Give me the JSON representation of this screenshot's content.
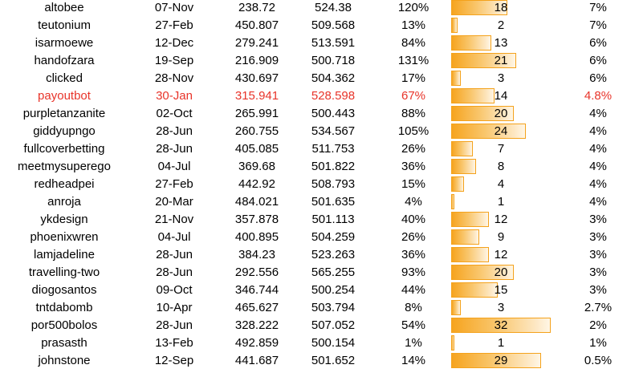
{
  "colors": {
    "highlight_text": "#e8342a",
    "bar_border": "#f4a21c",
    "bar_fill_start": "#f6a41f",
    "bar_fill_end": "#fff6e6"
  },
  "bar_scale_max": 32,
  "rows": [
    {
      "name": "altobee",
      "date": "07-Nov",
      "v1": "238.72",
      "v2": "524.38",
      "pct": "120%",
      "count": 18,
      "share": "7%",
      "highlight": false
    },
    {
      "name": "teutonium",
      "date": "27-Feb",
      "v1": "450.807",
      "v2": "509.568",
      "pct": "13%",
      "count": 2,
      "share": "7%",
      "highlight": false
    },
    {
      "name": "isarmoewe",
      "date": "12-Dec",
      "v1": "279.241",
      "v2": "513.591",
      "pct": "84%",
      "count": 13,
      "share": "6%",
      "highlight": false
    },
    {
      "name": "handofzara",
      "date": "19-Sep",
      "v1": "216.909",
      "v2": "500.718",
      "pct": "131%",
      "count": 21,
      "share": "6%",
      "highlight": false
    },
    {
      "name": "clicked",
      "date": "28-Nov",
      "v1": "430.697",
      "v2": "504.362",
      "pct": "17%",
      "count": 3,
      "share": "6%",
      "highlight": false
    },
    {
      "name": "payoutbot",
      "date": "30-Jan",
      "v1": "315.941",
      "v2": "528.598",
      "pct": "67%",
      "count": 14,
      "share": "4.8%",
      "highlight": true
    },
    {
      "name": "purpletanzanite",
      "date": "02-Oct",
      "v1": "265.991",
      "v2": "500.443",
      "pct": "88%",
      "count": 20,
      "share": "4%",
      "highlight": false
    },
    {
      "name": "giddyupngo",
      "date": "28-Jun",
      "v1": "260.755",
      "v2": "534.567",
      "pct": "105%",
      "count": 24,
      "share": "4%",
      "highlight": false
    },
    {
      "name": "fullcoverbetting",
      "date": "28-Jun",
      "v1": "405.085",
      "v2": "511.753",
      "pct": "26%",
      "count": 7,
      "share": "4%",
      "highlight": false
    },
    {
      "name": "meetmysuperego",
      "date": "04-Jul",
      "v1": "369.68",
      "v2": "501.822",
      "pct": "36%",
      "count": 8,
      "share": "4%",
      "highlight": false
    },
    {
      "name": "redheadpei",
      "date": "27-Feb",
      "v1": "442.92",
      "v2": "508.793",
      "pct": "15%",
      "count": 4,
      "share": "4%",
      "highlight": false
    },
    {
      "name": "anroja",
      "date": "20-Mar",
      "v1": "484.021",
      "v2": "501.635",
      "pct": "4%",
      "count": 1,
      "share": "4%",
      "highlight": false
    },
    {
      "name": "ykdesign",
      "date": "21-Nov",
      "v1": "357.878",
      "v2": "501.113",
      "pct": "40%",
      "count": 12,
      "share": "3%",
      "highlight": false
    },
    {
      "name": "phoenixwren",
      "date": "04-Jul",
      "v1": "400.895",
      "v2": "504.259",
      "pct": "26%",
      "count": 9,
      "share": "3%",
      "highlight": false
    },
    {
      "name": "lamjadeline",
      "date": "28-Jun",
      "v1": "384.23",
      "v2": "523.263",
      "pct": "36%",
      "count": 12,
      "share": "3%",
      "highlight": false
    },
    {
      "name": "travelling-two",
      "date": "28-Jun",
      "v1": "292.556",
      "v2": "565.255",
      "pct": "93%",
      "count": 20,
      "share": "3%",
      "highlight": false
    },
    {
      "name": "diogosantos",
      "date": "09-Oct",
      "v1": "346.744",
      "v2": "500.254",
      "pct": "44%",
      "count": 15,
      "share": "3%",
      "highlight": false
    },
    {
      "name": "tntdabomb",
      "date": "10-Apr",
      "v1": "465.627",
      "v2": "503.794",
      "pct": "8%",
      "count": 3,
      "share": "2.7%",
      "highlight": false
    },
    {
      "name": "por500bolos",
      "date": "28-Jun",
      "v1": "328.222",
      "v2": "507.052",
      "pct": "54%",
      "count": 32,
      "share": "2%",
      "highlight": false
    },
    {
      "name": "prasasth",
      "date": "13-Feb",
      "v1": "492.859",
      "v2": "500.154",
      "pct": "1%",
      "count": 1,
      "share": "1%",
      "highlight": false
    },
    {
      "name": "johnstone",
      "date": "12-Sep",
      "v1": "441.687",
      "v2": "501.652",
      "pct": "14%",
      "count": 29,
      "share": "0.5%",
      "highlight": false
    }
  ]
}
